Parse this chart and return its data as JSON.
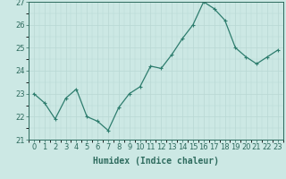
{
  "x": [
    0,
    1,
    2,
    3,
    4,
    5,
    6,
    7,
    8,
    9,
    10,
    11,
    12,
    13,
    14,
    15,
    16,
    17,
    18,
    19,
    20,
    21,
    22,
    23
  ],
  "y": [
    23.0,
    22.6,
    21.9,
    22.8,
    23.2,
    22.0,
    21.8,
    21.4,
    22.4,
    23.0,
    23.3,
    24.2,
    24.1,
    24.7,
    25.4,
    26.0,
    27.0,
    26.7,
    26.2,
    25.0,
    24.6,
    24.3,
    24.6,
    24.9
  ],
  "line_color": "#2e7d6e",
  "marker": "+",
  "marker_size": 3,
  "marker_lw": 0.8,
  "line_width": 0.9,
  "bg_color": "#cce8e4",
  "grid_color": "#b8d8d4",
  "xlabel": "Humidex (Indice chaleur)",
  "ylim": [
    21,
    27
  ],
  "xlim": [
    -0.5,
    23.5
  ],
  "yticks": [
    21,
    22,
    23,
    24,
    25,
    26,
    27
  ],
  "xticks": [
    0,
    1,
    2,
    3,
    4,
    5,
    6,
    7,
    8,
    9,
    10,
    11,
    12,
    13,
    14,
    15,
    16,
    17,
    18,
    19,
    20,
    21,
    22,
    23
  ],
  "tick_color": "#2e6b5e",
  "label_fontsize": 7,
  "tick_fontsize": 6,
  "spine_color": "#2e6b5e"
}
